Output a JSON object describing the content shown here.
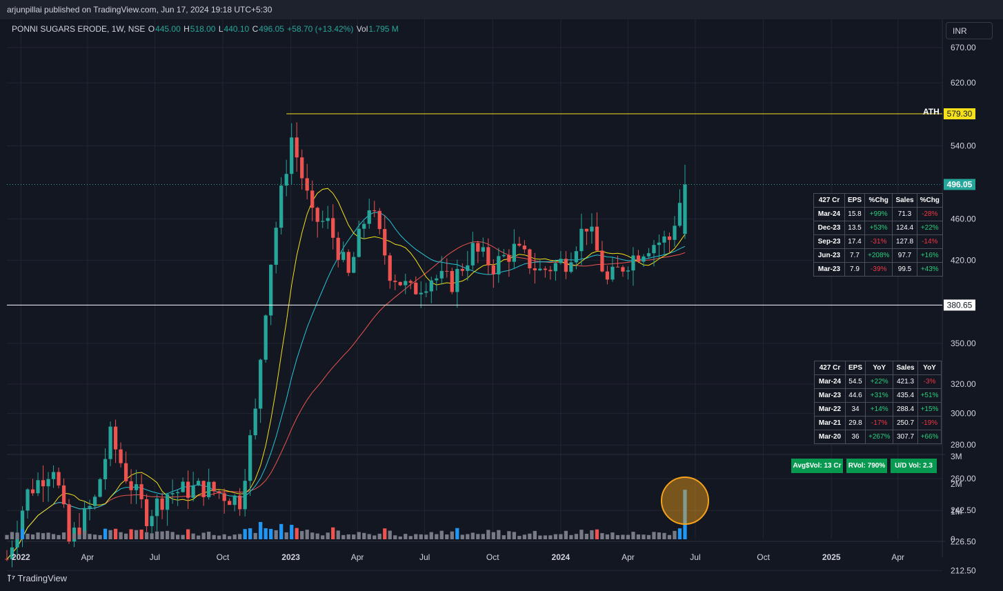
{
  "publisher": "arjunpillai published on TradingView.com, Jun 17, 2024 19:18 UTC+5:30",
  "legend": {
    "symbol": "PONNI SUGARS ERODE, 1W, NSE",
    "o_label": "O",
    "o": "445.00",
    "h_label": "H",
    "h": "518.00",
    "l_label": "L",
    "l": "440.10",
    "c_label": "C",
    "c": "496.05",
    "chg": "+58.70 (+13.42%)",
    "vol_label": "Vol",
    "vol": "1.795 M"
  },
  "currency": "INR",
  "ath_label": "ATH",
  "colors": {
    "up": "#26a69a",
    "down": "#ef5350",
    "vol_blue": "#2196f3",
    "vol_green": "#4caf50",
    "vol_grey": "#787b86",
    "ath_line": "#f5e11a",
    "support_line": "#ffffff",
    "ma_fast": "#f5e11a",
    "ma_mid": "#26c6da",
    "ma_slow": "#ef5350",
    "highlight": "#f7a21b"
  },
  "tables": {
    "quarterly": {
      "header": [
        "427 Cr",
        "EPS",
        "%Chg",
        "Sales",
        "%Chg"
      ],
      "rows": [
        [
          "Mar-24",
          "15.8",
          "+99%",
          "71.3",
          "-28%"
        ],
        [
          "Dec-23",
          "13.5",
          "+53%",
          "124.4",
          "+22%"
        ],
        [
          "Sep-23",
          "17.4",
          "-31%",
          "127.8",
          "-14%"
        ],
        [
          "Jun-23",
          "7.7",
          "+208%",
          "97.7",
          "+16%"
        ],
        [
          "Mar-23",
          "7.9",
          "-39%",
          "99.5",
          "+43%"
        ]
      ]
    },
    "annual": {
      "header": [
        "427 Cr",
        "EPS",
        "YoY",
        "Sales",
        "YoY"
      ],
      "rows": [
        [
          "Mar-24",
          "54.5",
          "+22%",
          "421.3",
          "-3%"
        ],
        [
          "Mar-23",
          "44.6",
          "+31%",
          "435.4",
          "+51%"
        ],
        [
          "Mar-22",
          "34",
          "+14%",
          "288.4",
          "+15%"
        ],
        [
          "Mar-21",
          "29.8",
          "-17%",
          "250.7",
          "-19%"
        ],
        [
          "Mar-20",
          "36",
          "+267%",
          "307.7",
          "+66%"
        ]
      ]
    }
  },
  "badges": {
    "avg_vol": "Avg$Vol: 13 Cr",
    "rvol": "RVol: 790%",
    "ud_vol": "U/D Vol: 2.3"
  },
  "branding": "TradingView",
  "chart_data": {
    "type": "candlestick",
    "interval": "1W",
    "price_scale": "log",
    "y_ticks": [
      670.0,
      620.0,
      540.0,
      460.0,
      420.0,
      350.0,
      320.0,
      300.0,
      280.0,
      260.0,
      242.5,
      226.5,
      212.5
    ],
    "y_tick_labels": [
      "670.00",
      "620.00",
      "540.00",
      "460.00",
      "420.00",
      "350.00",
      "320.00",
      "300.00",
      "280.00",
      "260.00",
      "242.50",
      "226.50",
      "212.50"
    ],
    "volume_ticks": [
      0,
      1000000,
      2000000,
      3000000
    ],
    "volume_tick_labels": [
      "0",
      "1M",
      "2M",
      "3M"
    ],
    "x_tick_labels": [
      "2022",
      "Apr",
      "Jul",
      "Oct",
      "2023",
      "Apr",
      "Jul",
      "Oct",
      "2024",
      "Apr",
      "Jul",
      "Oct",
      "2025",
      "Apr"
    ],
    "x_tick_dates": [
      "2022-01-01",
      "2022-04-01",
      "2022-07-01",
      "2022-10-01",
      "2023-01-01",
      "2023-04-01",
      "2023-07-01",
      "2023-10-01",
      "2024-01-01",
      "2024-04-01",
      "2024-07-01",
      "2024-10-01",
      "2025-01-01",
      "2025-04-01"
    ],
    "x_range": [
      "2021-12-13",
      "2025-05-31"
    ],
    "horizontal_lines": [
      {
        "label": "579.30",
        "value": 579.3,
        "color": "yellow",
        "start_date": "2022-12-26"
      },
      {
        "label": "380.65",
        "value": 380.65,
        "color": "white"
      }
    ],
    "last_price": {
      "label": "496.05",
      "value": 496.05
    },
    "key_points": [
      {
        "date": "2021-12-13",
        "close": 218
      },
      {
        "date": "2022-01-10",
        "close": 252
      },
      {
        "date": "2022-02-14",
        "close": 268
      },
      {
        "date": "2022-03-07",
        "close": 226
      },
      {
        "date": "2022-04-11",
        "close": 248
      },
      {
        "date": "2022-05-02",
        "close": 285
      },
      {
        "date": "2022-05-23",
        "close": 262
      },
      {
        "date": "2022-06-20",
        "close": 240
      },
      {
        "date": "2022-07-18",
        "close": 252
      },
      {
        "date": "2022-09-05",
        "close": 255
      },
      {
        "date": "2022-10-24",
        "close": 248
      },
      {
        "date": "2022-11-14",
        "close": 300
      },
      {
        "date": "2022-12-05",
        "close": 420
      },
      {
        "date": "2023-01-02",
        "close": 550
      },
      {
        "date": "2023-01-30",
        "close": 460
      },
      {
        "date": "2023-02-20",
        "close": 455
      },
      {
        "date": "2023-03-20",
        "close": 405
      },
      {
        "date": "2023-04-17",
        "close": 475
      },
      {
        "date": "2023-05-15",
        "close": 410
      },
      {
        "date": "2023-06-12",
        "close": 392
      },
      {
        "date": "2023-07-10",
        "close": 405
      },
      {
        "date": "2023-08-07",
        "close": 400
      },
      {
        "date": "2023-09-04",
        "close": 430
      },
      {
        "date": "2023-10-02",
        "close": 415
      },
      {
        "date": "2023-10-30",
        "close": 430
      },
      {
        "date": "2023-12-04",
        "close": 410
      },
      {
        "date": "2024-01-08",
        "close": 420
      },
      {
        "date": "2024-02-05",
        "close": 455
      },
      {
        "date": "2024-03-04",
        "close": 400
      },
      {
        "date": "2024-04-01",
        "close": 420
      },
      {
        "date": "2024-04-29",
        "close": 435
      },
      {
        "date": "2024-05-27",
        "close": 440
      },
      {
        "date": "2024-06-17",
        "close": 496.05
      }
    ]
  }
}
